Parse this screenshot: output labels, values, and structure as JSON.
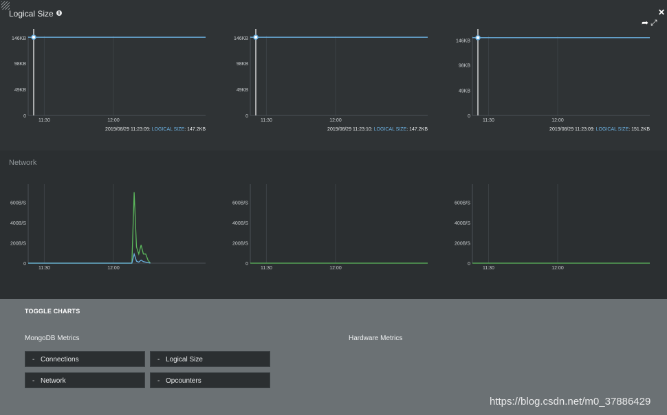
{
  "header": {
    "title": "Logical Size"
  },
  "network_section": {
    "title": "Network"
  },
  "logical_charts": [
    {
      "y_ticks": [
        "146KB",
        "98KB",
        "49KB",
        "0"
      ],
      "x_ticks": [
        "11:30",
        "12:00"
      ],
      "readout_time": "2019/08/29 11:23:09:",
      "readout_label": "LOGICAL SIZE",
      "readout_value": ": 147.2KB"
    },
    {
      "y_ticks": [
        "146KB",
        "98KB",
        "49KB",
        "0"
      ],
      "x_ticks": [
        "11:30",
        "12:00"
      ],
      "readout_time": "2019/08/29 11:23:10:",
      "readout_label": "LOGICAL SIZE",
      "readout_value": ": 147.2KB"
    },
    {
      "y_ticks": [
        "146KB",
        "98KB",
        "49KB",
        "0"
      ],
      "x_ticks": [
        "11:30",
        "12:00"
      ],
      "readout_time": "2019/08/29 11:23:09:",
      "readout_label": "LOGICAL SIZE",
      "readout_value": ": 151.2KB"
    }
  ],
  "network_charts": [
    {
      "y_ticks": [
        "600B/S",
        "400B/S",
        "200B/S",
        "0"
      ],
      "x_ticks": [
        "11:30",
        "12:00"
      ]
    },
    {
      "y_ticks": [
        "600B/S",
        "400B/S",
        "200B/S",
        "0"
      ],
      "x_ticks": [
        "11:30",
        "12:00"
      ]
    },
    {
      "y_ticks": [
        "600B/S",
        "400B/S",
        "200B/S",
        "0"
      ],
      "x_ticks": [
        "11:30",
        "12:00"
      ]
    }
  ],
  "chart_data": [
    {
      "type": "line",
      "title": "",
      "ylim": [
        0,
        150
      ],
      "y_unit": "KB",
      "series": [
        {
          "color": "#6cb2e2",
          "x": [
            "11:23",
            "12:40"
          ],
          "y": [
            147.2,
            147.2
          ]
        }
      ]
    },
    {
      "type": "line",
      "title": "",
      "ylim": [
        0,
        150
      ],
      "y_unit": "KB",
      "series": [
        {
          "color": "#6cb2e2",
          "x": [
            "11:23",
            "12:40"
          ],
          "y": [
            147.2,
            147.2
          ]
        }
      ]
    },
    {
      "type": "line",
      "title": "",
      "ylim": [
        0,
        155
      ],
      "y_unit": "KB",
      "series": [
        {
          "color": "#6cb2e2",
          "x": [
            "11:23",
            "12:40"
          ],
          "y": [
            151.2,
            151.2
          ]
        }
      ]
    },
    {
      "type": "line",
      "title": "",
      "ylim": [
        0,
        780
      ],
      "y_unit": "B/S",
      "series": [
        {
          "color": "#5cb85c",
          "x": [
            "11:23",
            "12:08",
            "12:09",
            "12:10",
            "12:11",
            "12:12",
            "12:13",
            "12:14",
            "12:15",
            "12:16"
          ],
          "y": [
            0,
            0,
            700,
            160,
            90,
            180,
            90,
            90,
            30,
            0
          ]
        },
        {
          "color": "#6cb2e2",
          "x": [
            "11:23",
            "12:08",
            "12:09",
            "12:10",
            "12:11",
            "12:12",
            "12:13",
            "12:14",
            "12:15",
            "12:16"
          ],
          "y": [
            0,
            0,
            90,
            20,
            10,
            30,
            15,
            10,
            5,
            0
          ]
        }
      ]
    },
    {
      "type": "line",
      "title": "",
      "ylim": [
        0,
        780
      ],
      "y_unit": "B/S",
      "series": [
        {
          "color": "#5cb85c",
          "x": [
            "11:23",
            "12:40"
          ],
          "y": [
            0,
            0
          ]
        }
      ]
    },
    {
      "type": "line",
      "title": "",
      "ylim": [
        0,
        780
      ],
      "y_unit": "B/S",
      "series": [
        {
          "color": "#5cb85c",
          "x": [
            "11:23",
            "12:40"
          ],
          "y": [
            0,
            0
          ]
        }
      ]
    }
  ],
  "toggle": {
    "heading": "TOGGLE CHARTS",
    "mongodb_title": "MongoDB Metrics",
    "hardware_title": "Hardware Metrics",
    "buttons": [
      "Connections",
      "Logical Size",
      "Network",
      "Opcounters"
    ],
    "dash": "-"
  },
  "watermark": "https://blog.csdn.net/m0_37886429"
}
